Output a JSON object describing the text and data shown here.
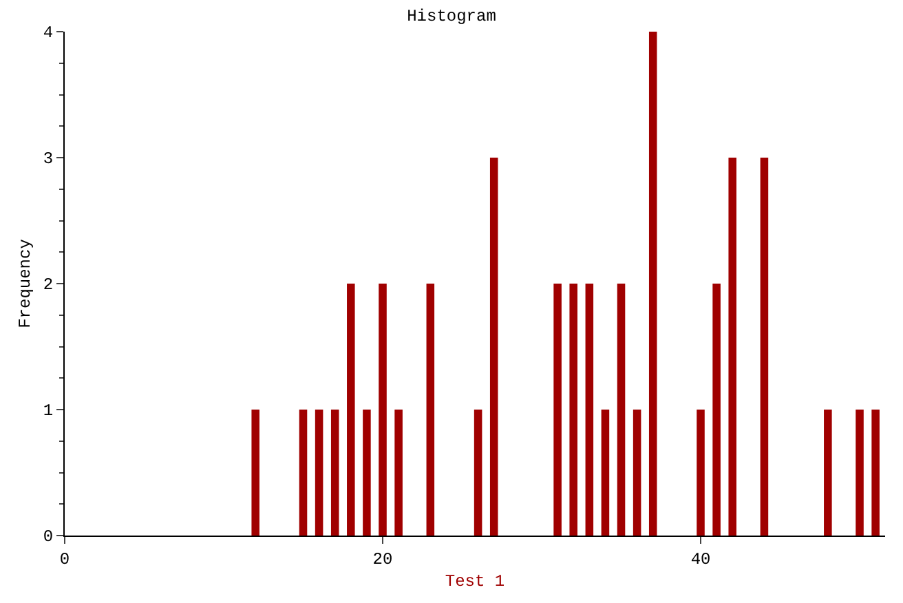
{
  "chart_data": {
    "type": "histogram",
    "title": "Histogram",
    "xlabel": "Test 1",
    "ylabel": "Frequency",
    "bins": [
      11.5,
      12.5,
      13.5,
      14.5,
      15.5,
      16.5,
      17.5,
      18.5,
      19.5,
      20.5,
      21.5,
      22.5,
      23.5,
      24.5,
      25.5,
      26.5,
      27.5,
      28.5,
      29.5,
      30.5,
      31.5,
      32.5,
      33.5,
      34.5,
      35.5,
      36.5,
      37.5,
      38.5,
      39.5,
      40.5,
      41.5,
      42.5,
      43.5,
      44.5,
      45.5,
      46.5,
      47.5,
      48.5,
      49.5,
      50.5,
      51.5
    ],
    "values": [
      1,
      0,
      0,
      1,
      1,
      1,
      2,
      1,
      2,
      1,
      0,
      2,
      0,
      0,
      1,
      3,
      0,
      0,
      0,
      2,
      2,
      2,
      1,
      2,
      1,
      4,
      0,
      0,
      1,
      2,
      3,
      0,
      3,
      0,
      0,
      0,
      1,
      0,
      1,
      1
    ],
    "color": "#a00000",
    "xlim": [
      0,
      51.6
    ],
    "xticks": [
      0,
      20,
      40
    ],
    "ylim": [
      0,
      4
    ],
    "yticks": [
      0,
      1,
      2,
      3,
      4
    ]
  }
}
